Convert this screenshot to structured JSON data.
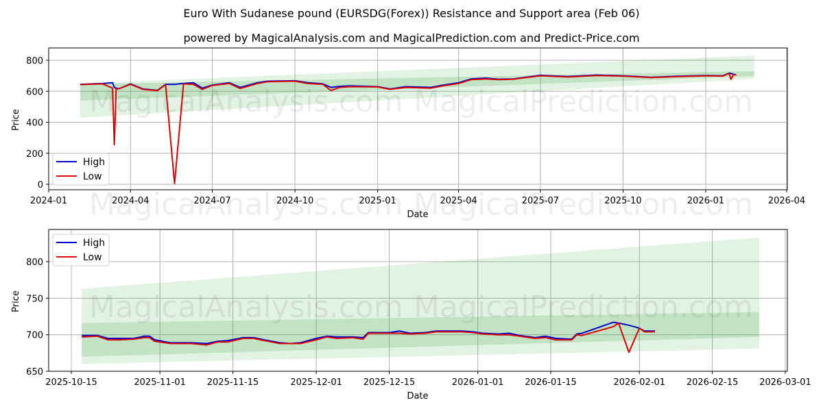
{
  "header": {
    "title": "Euro With Sudanese pound (EURSDG(Forex)) Resistance and Support area (Feb 06)",
    "subtitle": "powered by MagicalAnalysis.com and MagicalPrediction.com and Predict-Price.com"
  },
  "watermarks": [
    "MagicalAnalysis.com",
    "MagicalPrediction.com"
  ],
  "colors": {
    "high": "#0000cc",
    "low": "#dd0000",
    "band_light": "#c8e6c9",
    "band_dark": "#a5d6a7",
    "grid": "#b0b0b0"
  },
  "chart_data": [
    {
      "type": "line",
      "title": "Euro With Sudanese pound (EURSDG(Forex)) Resistance and Support area (Feb 06)",
      "xlabel": "Date",
      "ylabel": "Price",
      "ylim": [
        -30,
        870
      ],
      "yticks": [
        0,
        200,
        400,
        600,
        800
      ],
      "xticks": [
        "2024-01",
        "2024-04",
        "2024-07",
        "2024-10",
        "2025-01",
        "2025-04",
        "2025-07",
        "2025-10",
        "2026-01",
        "2026-04"
      ],
      "grid": true,
      "legend": {
        "position": "lower left",
        "entries": [
          "High",
          "Low"
        ]
      },
      "x": [
        "2024-02-05",
        "2024-03-01",
        "2024-03-12",
        "2024-03-14",
        "2024-03-16",
        "2024-03-20",
        "2024-04-01",
        "2024-04-15",
        "2024-05-01",
        "2024-05-10",
        "2024-05-20",
        "2024-05-30",
        "2024-06-10",
        "2024-06-20",
        "2024-07-01",
        "2024-07-20",
        "2024-08-01",
        "2024-08-20",
        "2024-09-01",
        "2024-10-01",
        "2024-10-15",
        "2024-11-01",
        "2024-11-10",
        "2024-11-20",
        "2024-12-01",
        "2025-01-01",
        "2025-01-15",
        "2025-02-01",
        "2025-03-01",
        "2025-03-15",
        "2025-04-01",
        "2025-04-15",
        "2025-05-01",
        "2025-05-15",
        "2025-06-01",
        "2025-07-01",
        "2025-08-01",
        "2025-09-01",
        "2025-10-01",
        "2025-11-01",
        "2025-12-01",
        "2026-01-01",
        "2026-01-20",
        "2026-01-27",
        "2026-01-29",
        "2026-02-01",
        "2026-02-04"
      ],
      "series": [
        {
          "name": "High",
          "color": "#0000cc",
          "values": [
            645,
            650,
            655,
            625,
            620,
            618,
            648,
            615,
            606,
            645,
            645,
            650,
            655,
            620,
            640,
            655,
            625,
            655,
            665,
            668,
            655,
            648,
            625,
            632,
            635,
            630,
            615,
            630,
            625,
            640,
            655,
            680,
            685,
            678,
            680,
            703,
            695,
            705,
            700,
            690,
            697,
            702,
            700,
            717,
            715,
            710,
            705
          ]
        },
        {
          "name": "Low",
          "color": "#dd0000",
          "values": [
            643,
            648,
            620,
            255,
            615,
            618,
            645,
            612,
            604,
            643,
            5,
            648,
            645,
            612,
            638,
            650,
            618,
            650,
            662,
            665,
            650,
            645,
            605,
            625,
            630,
            628,
            612,
            625,
            620,
            635,
            650,
            675,
            680,
            675,
            678,
            700,
            692,
            702,
            698,
            688,
            695,
            700,
            698,
            715,
            677,
            708,
            705
          ]
        }
      ],
      "bands": [
        {
          "name": "outer",
          "x_start": "2024-02-05",
          "x_end": "2026-02-24",
          "upper": [
            650,
            830
          ],
          "lower": [
            430,
            680
          ]
        },
        {
          "name": "inner",
          "x_start": "2024-02-05",
          "x_end": "2026-02-24",
          "upper": [
            645,
            730
          ],
          "lower": [
            540,
            697
          ]
        }
      ]
    },
    {
      "type": "line",
      "title": "",
      "xlabel": "Date",
      "ylabel": "Price",
      "ylim": [
        650,
        840
      ],
      "yticks": [
        650,
        700,
        750,
        800
      ],
      "xticks": [
        "2025-10-15",
        "2025-11-01",
        "2025-11-15",
        "2025-12-01",
        "2025-12-15",
        "2026-01-01",
        "2026-01-15",
        "2026-02-01",
        "2026-02-15",
        "2026-03-01"
      ],
      "grid": true,
      "legend": {
        "position": "upper left",
        "entries": [
          "High",
          "Low"
        ]
      },
      "x": [
        "2025-10-17",
        "2025-10-20",
        "2025-10-22",
        "2025-10-24",
        "2025-10-27",
        "2025-10-29",
        "2025-10-30",
        "2025-10-31",
        "2025-11-03",
        "2025-11-05",
        "2025-11-07",
        "2025-11-10",
        "2025-11-12",
        "2025-11-14",
        "2025-11-17",
        "2025-11-19",
        "2025-11-21",
        "2025-11-24",
        "2025-11-26",
        "2025-11-28",
        "2025-12-01",
        "2025-12-03",
        "2025-12-05",
        "2025-12-08",
        "2025-12-10",
        "2025-12-11",
        "2025-12-15",
        "2025-12-17",
        "2025-12-19",
        "2025-12-22",
        "2025-12-24",
        "2025-12-26",
        "2025-12-29",
        "2025-12-31",
        "2026-01-02",
        "2026-01-05",
        "2026-01-07",
        "2026-01-09",
        "2026-01-12",
        "2026-01-14",
        "2026-01-16",
        "2026-01-19",
        "2026-01-20",
        "2026-01-21",
        "2026-01-27",
        "2026-01-28",
        "2026-01-30",
        "2026-02-01",
        "2026-02-02",
        "2026-02-04"
      ],
      "series": [
        {
          "name": "High",
          "color": "#0000cc",
          "values": [
            699,
            699,
            695,
            695,
            695,
            698,
            698,
            693,
            689,
            689,
            689,
            688,
            691,
            692,
            696,
            696,
            693,
            689,
            688,
            689,
            695,
            698,
            697,
            697,
            696,
            703,
            703,
            705,
            702,
            703,
            705,
            705,
            705,
            704,
            702,
            701,
            702,
            699,
            696,
            698,
            695,
            694,
            701,
            702,
            717,
            716,
            713,
            709,
            705,
            705
          ]
        },
        {
          "name": "Low",
          "color": "#dd0000",
          "values": [
            697,
            698,
            693,
            693,
            694,
            696,
            696,
            691,
            688,
            688,
            688,
            686,
            690,
            690,
            695,
            695,
            692,
            688,
            688,
            688,
            693,
            697,
            695,
            696,
            694,
            702,
            702,
            702,
            701,
            702,
            704,
            704,
            704,
            703,
            701,
            700,
            700,
            698,
            695,
            696,
            693,
            693,
            700,
            699,
            711,
            716,
            676,
            709,
            704,
            704
          ]
        }
      ],
      "bands": [
        {
          "name": "outer",
          "x_start": "2025-10-17",
          "x_end": "2026-02-24",
          "upper": [
            763,
            833
          ],
          "lower": [
            660,
            681
          ]
        },
        {
          "name": "inner",
          "x_start": "2025-10-17",
          "x_end": "2026-02-24",
          "upper": [
            716,
            731
          ],
          "lower": [
            670,
            697
          ]
        }
      ]
    }
  ]
}
